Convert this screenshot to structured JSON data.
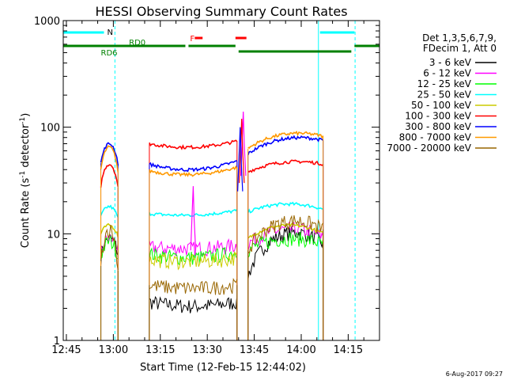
{
  "chart_data": {
    "type": "line",
    "title": "HESSI Observing Summary Count Rates",
    "xlabel": "Start Time (12-Feb-15 12:44:02)",
    "ylabel_main": "Count Rate (s",
    "ylabel_sup1": "-1",
    "ylabel_mid": " detector",
    "ylabel_sup2": "-1",
    "ylabel_end": ")",
    "yscale": "log",
    "ylim": [
      1,
      1000
    ],
    "xlim_min": [
      -1,
      100
    ],
    "x_ticks": [
      {
        "min": 0,
        "label": "12:45"
      },
      {
        "min": 15,
        "label": "13:00"
      },
      {
        "min": 30,
        "label": "13:15"
      },
      {
        "min": 45,
        "label": "13:30"
      },
      {
        "min": 60,
        "label": "13:45"
      },
      {
        "min": 75,
        "label": "14:00"
      },
      {
        "min": 90,
        "label": "14:15"
      }
    ],
    "y_ticks": [
      {
        "value": 1,
        "label": "1"
      },
      {
        "value": 10,
        "label": "10"
      },
      {
        "value": 100,
        "label": "100"
      },
      {
        "value": 1000,
        "label": "1000"
      }
    ],
    "legend": {
      "header1": "Det 1,3,5,6,7,9,",
      "header2": "FDecim 1, Att 0",
      "placement": "right"
    },
    "series": [
      {
        "name": "3 - 6 keV",
        "color": "#000000",
        "orbit1": [
          6,
          9,
          6.5
        ],
        "orbit2": [
          2.3,
          2.1,
          2.3
        ],
        "orbit3": [
          4,
          10,
          8
        ]
      },
      {
        "name": "6 - 12 keV",
        "color": "#ff00ff",
        "orbit1": [
          7,
          9,
          7
        ],
        "orbit2": [
          7.5,
          7.3,
          7.8
        ],
        "orbit3": [
          8,
          11,
          9.5
        ]
      },
      {
        "name": "12 - 25 keV",
        "color": "#00ff00",
        "orbit1": [
          6,
          8.5,
          6
        ],
        "orbit2": [
          6.5,
          6,
          6.8
        ],
        "orbit3": [
          7,
          9,
          8
        ]
      },
      {
        "name": "25 - 50 keV",
        "color": "#00ffff",
        "orbit1": [
          14.5,
          18,
          14
        ],
        "orbit2": [
          15.5,
          15,
          16.5
        ],
        "orbit3": [
          16,
          19,
          17
        ]
      },
      {
        "name": "50 - 100 keV",
        "color": "#cccc00",
        "orbit1": [
          10,
          12,
          9.5
        ],
        "orbit2": [
          5.8,
          5.5,
          6
        ],
        "orbit3": [
          9,
          12,
          10
        ]
      },
      {
        "name": "100 - 300 keV",
        "color": "#ff0000",
        "orbit1": [
          28,
          45,
          27
        ],
        "orbit2": [
          70,
          65,
          74
        ],
        "orbit3": [
          38,
          47,
          45
        ]
      },
      {
        "name": "300 - 800 keV",
        "color": "#0000ff",
        "orbit1": [
          46,
          70,
          45
        ],
        "orbit2": [
          45,
          40,
          48
        ],
        "orbit3": [
          56,
          78,
          75
        ]
      },
      {
        "name": "800 - 7000 keV",
        "color": "#ff9900",
        "orbit1": [
          40,
          65,
          38
        ],
        "orbit2": [
          39,
          36,
          42
        ],
        "orbit3": [
          63,
          86,
          82
        ]
      },
      {
        "name": "7000 - 20000 keV",
        "color": "#996600",
        "orbit1": [
          5,
          11,
          4.5
        ],
        "orbit2": [
          3.3,
          3.1,
          3.3
        ],
        "orbit3": [
          7,
          13,
          11
        ]
      }
    ],
    "flare_spikes": [
      {
        "min": 40.5,
        "series": "6 - 12 keV",
        "peak": 28
      },
      {
        "min": 56.5,
        "series": "6 - 12 keV",
        "peak": 140
      },
      {
        "min": 56,
        "series": "100 - 300 keV",
        "peak": 120
      },
      {
        "min": 55.5,
        "series": "300 - 800 keV",
        "peak": 100
      }
    ],
    "orbit_segments": [
      {
        "start": 11,
        "end": 16.5
      },
      {
        "start": 26.5,
        "end": 54.5
      },
      {
        "start": 58,
        "end": 82
      }
    ],
    "status_bars": {
      "n_label": "N",
      "n_segments": [
        [
          -1,
          12
        ],
        [
          81,
          92
        ]
      ],
      "f_label": "F",
      "f_segments": [
        [
          41,
          43.5
        ],
        [
          54,
          57.5
        ]
      ],
      "rd0_label": "RD0",
      "rd6_label": "RD6",
      "rd_segments": [
        [
          -1,
          38
        ],
        [
          39,
          54
        ],
        [
          55,
          91
        ],
        [
          92,
          100
        ]
      ],
      "rd_boundaries": [
        16,
        26
      ]
    },
    "vertical_lines": {
      "solid_cyan": [
        80.5
      ],
      "dashed_cyan": [
        15.5,
        92.2
      ]
    },
    "footer_date": "6-Aug-2017 09:27"
  }
}
